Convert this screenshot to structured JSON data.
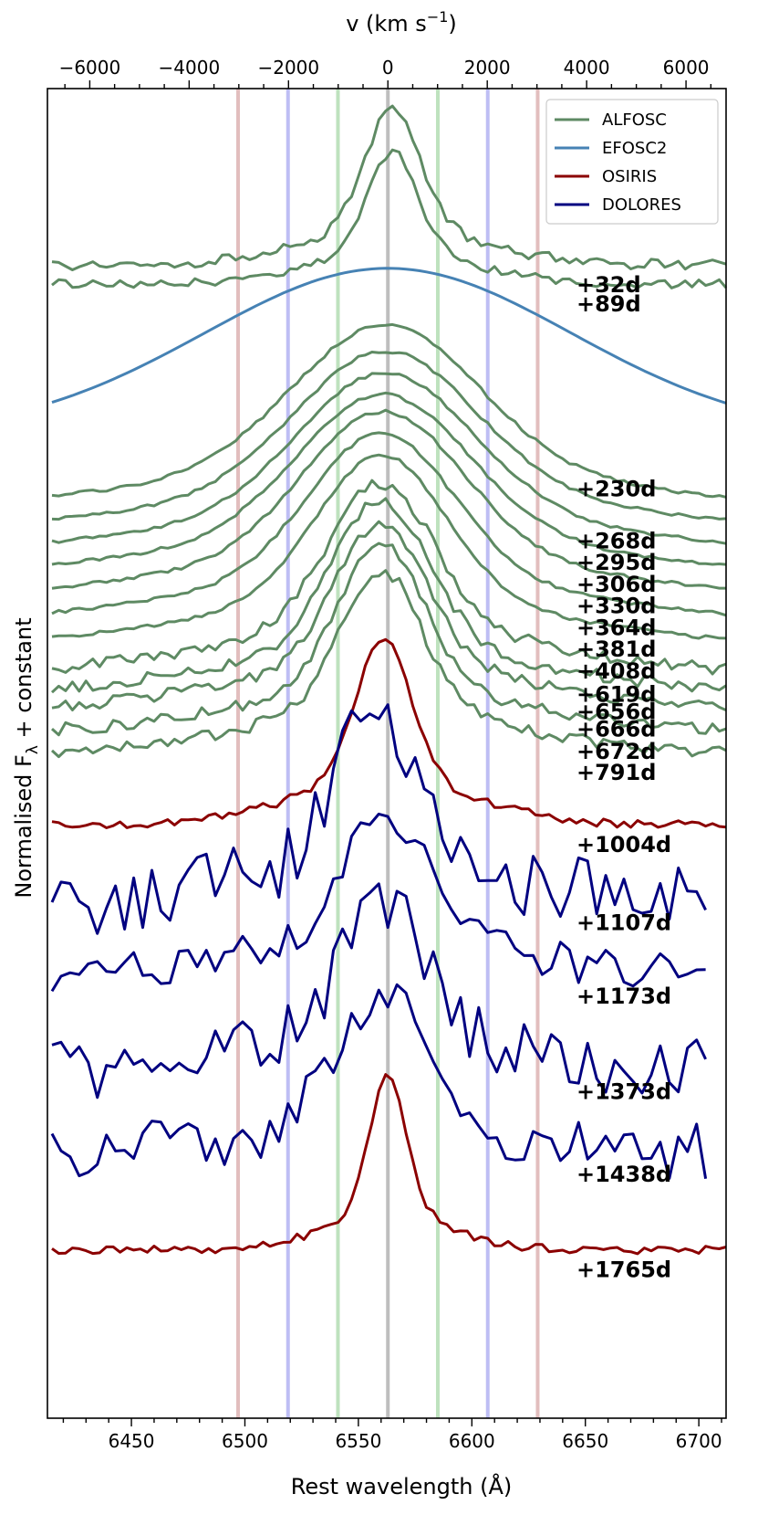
{
  "chart_data": {
    "type": "line",
    "xlabel": "Rest wavelength (Å)",
    "x2label_main": "v (km s",
    "x2label_sup": "−1",
    "x2label_close": ")",
    "ylabel_pre": "Normalised F",
    "ylabel_sub": "λ",
    "ylabel_post": " + constant",
    "xlim": [
      6413,
      6712
    ],
    "x_ticks": [
      "6450",
      "6500",
      "6550",
      "6600",
      "6650",
      "6700"
    ],
    "x2_ticks": [
      "−6000",
      "−4000",
      "−2000",
      "0",
      "2000",
      "4000",
      "6000"
    ],
    "legend": {
      "placement": "top-right",
      "entries": [
        {
          "label": "ALFOSC",
          "color": "#5e8a63"
        },
        {
          "label": "EFOSC2",
          "color": "#4682b4"
        },
        {
          "label": "OSIRIS",
          "color": "#8b0000"
        },
        {
          "label": "DOLORES",
          "color": "#000080"
        }
      ]
    },
    "reference_lines": [
      {
        "wavelength": 6497,
        "color": "#d8a8a8"
      },
      {
        "wavelength": 6519,
        "color": "#a8a8f0"
      },
      {
        "wavelength": 6541,
        "color": "#a8d8a8"
      },
      {
        "wavelength": 6563,
        "color": "#a8a8a8"
      },
      {
        "wavelength": 6585,
        "color": "#a8d8a8"
      },
      {
        "wavelength": 6607,
        "color": "#a8a8f0"
      },
      {
        "wavelength": 6629,
        "color": "#d8a8a8"
      }
    ],
    "series": [
      {
        "epoch": "+32d",
        "instrument": "ALFOSC",
        "x0": 6415,
        "x1": 6712,
        "base": 0.0,
        "amp": 1.7,
        "width": 0.55,
        "center": 6565,
        "noise": 0.06
      },
      {
        "epoch": "+89d",
        "instrument": "ALFOSC",
        "x0": 6415,
        "x1": 6712,
        "base": -0.22,
        "amp": 1.45,
        "width": 0.5,
        "center": 6565,
        "noise": 0.05
      },
      {
        "epoch": "+230d",
        "instrument": "EFOSC2",
        "x0": 6415,
        "x1": 6712,
        "base": -2.35,
        "amp": 2.2,
        "width": 3.6,
        "center": 6563,
        "noise": 0.0
      },
      {
        "epoch": "+268d",
        "instrument": "ALFOSC",
        "x0": 6415,
        "x1": 6712,
        "base": -2.95,
        "amp": 2.15,
        "width": 1.85,
        "center": 6562,
        "noise": 0.02
      },
      {
        "epoch": "+295d",
        "instrument": "ALFOSC",
        "x0": 6415,
        "x1": 6712,
        "base": -3.2,
        "amp": 2.1,
        "width": 1.8,
        "center": 6562,
        "noise": 0.02
      },
      {
        "epoch": "+306d",
        "instrument": "ALFOSC",
        "x0": 6415,
        "x1": 6712,
        "base": -3.45,
        "amp": 2.1,
        "width": 1.75,
        "center": 6562,
        "noise": 0.02
      },
      {
        "epoch": "+330d",
        "instrument": "ALFOSC",
        "x0": 6415,
        "x1": 6712,
        "base": -3.7,
        "amp": 2.1,
        "width": 1.7,
        "center": 6561,
        "noise": 0.02
      },
      {
        "epoch": "+364d",
        "instrument": "ALFOSC",
        "x0": 6415,
        "x1": 6712,
        "base": -3.95,
        "amp": 2.15,
        "width": 1.6,
        "center": 6561,
        "noise": 0.02
      },
      {
        "epoch": "+381d",
        "instrument": "ALFOSC",
        "x0": 6415,
        "x1": 6712,
        "base": -4.2,
        "amp": 2.15,
        "width": 1.45,
        "center": 6560,
        "noise": 0.02
      },
      {
        "epoch": "+408d",
        "instrument": "ALFOSC",
        "x0": 6415,
        "x1": 6712,
        "base": -4.45,
        "amp": 2.15,
        "width": 1.3,
        "center": 6560,
        "noise": 0.02
      },
      {
        "epoch": "+619d",
        "instrument": "ALFOSC",
        "x0": 6415,
        "x1": 6712,
        "base": -4.72,
        "amp": 2.1,
        "width": 1.05,
        "center": 6560,
        "noise": 0.07
      },
      {
        "epoch": "+656d",
        "instrument": "ALFOSC",
        "x0": 6415,
        "x1": 6712,
        "base": -4.92,
        "amp": 2.1,
        "width": 0.95,
        "center": 6560,
        "noise": 0.07
      },
      {
        "epoch": "+666d",
        "instrument": "ALFOSC",
        "x0": 6415,
        "x1": 6712,
        "base": -5.12,
        "amp": 2.05,
        "width": 0.9,
        "center": 6560,
        "noise": 0.07
      },
      {
        "epoch": "+672d",
        "instrument": "ALFOSC",
        "x0": 6415,
        "x1": 6712,
        "base": -5.38,
        "amp": 2.05,
        "width": 0.85,
        "center": 6560,
        "noise": 0.07
      },
      {
        "epoch": "+791d",
        "instrument": "ALFOSC",
        "x0": 6415,
        "x1": 6712,
        "base": -5.62,
        "amp": 2.0,
        "width": 0.8,
        "center": 6560,
        "noise": 0.07
      },
      {
        "epoch": "+1004d",
        "instrument": "OSIRIS",
        "x0": 6415,
        "x1": 6712,
        "base": -6.45,
        "amp": 2.05,
        "width": 0.55,
        "center": 6561,
        "noise": 0.05
      },
      {
        "epoch": "+1107d",
        "instrument": "DOLORES",
        "x0": 6415,
        "x1": 6703,
        "base": -7.35,
        "amp": 2.1,
        "width": 0.75,
        "center": 6558,
        "noise": 0.4
      },
      {
        "epoch": "+1173d",
        "instrument": "DOLORES",
        "x0": 6415,
        "x1": 6703,
        "base": -8.2,
        "amp": 1.85,
        "width": 0.8,
        "center": 6561,
        "noise": 0.22
      },
      {
        "epoch": "+1373d",
        "instrument": "DOLORES",
        "x0": 6415,
        "x1": 6703,
        "base": -9.3,
        "amp": 1.9,
        "width": 0.8,
        "center": 6561,
        "noise": 0.35
      },
      {
        "epoch": "+1438d",
        "instrument": "DOLORES",
        "x0": 6415,
        "x1": 6706,
        "base": -10.25,
        "amp": 1.65,
        "width": 0.8,
        "center": 6561,
        "noise": 0.38
      },
      {
        "epoch": "+1765d",
        "instrument": "OSIRIS",
        "x0": 6415,
        "x1": 6712,
        "base": -11.35,
        "amp": 1.95,
        "width": 0.35,
        "center": 6563,
        "noise": 0.05
      }
    ]
  }
}
